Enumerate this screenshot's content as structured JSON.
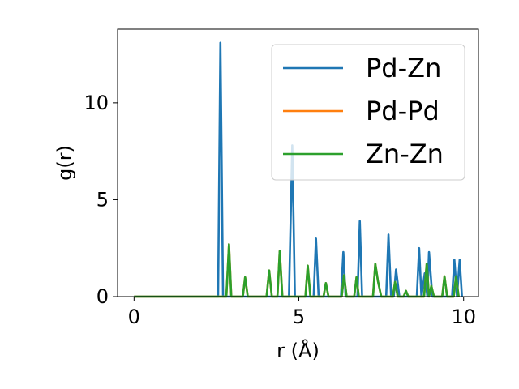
{
  "chart_data": {
    "type": "line",
    "xlabel": "r (Å)",
    "ylabel": "g(r)",
    "xlim": [
      -0.5,
      10.45
    ],
    "ylim": [
      0,
      13.8
    ],
    "xticks": [
      0,
      5,
      10
    ],
    "yticks": [
      0,
      5,
      10
    ],
    "grid": false,
    "legend_position": "top-right",
    "series": [
      {
        "name": "Pd-Zn",
        "color": "#1f77b4",
        "x": [
          0,
          2.5,
          2.55,
          2.62,
          2.7,
          2.75,
          4.62,
          4.7,
          4.8,
          4.88,
          4.95,
          5.38,
          5.45,
          5.52,
          5.6,
          6.2,
          6.28,
          6.35,
          6.42,
          6.7,
          6.78,
          6.85,
          6.92,
          7.58,
          7.65,
          7.72,
          7.8,
          7.88,
          7.95,
          8.05,
          8.12,
          8.58,
          8.65,
          8.72,
          8.82,
          8.9,
          8.95,
          9.05,
          9.15,
          9.65,
          9.72,
          9.8,
          9.88,
          9.95
        ],
        "y": [
          0,
          0,
          0,
          13.1,
          0,
          0,
          0,
          0,
          7.8,
          0,
          0,
          0,
          0,
          3.0,
          0,
          0,
          0,
          2.3,
          0,
          0,
          0,
          3.9,
          0,
          0,
          0,
          3.2,
          0,
          0,
          1.4,
          0,
          0,
          0,
          2.5,
          0,
          1.2,
          0,
          2.3,
          0,
          0,
          0,
          1.9,
          0,
          1.9,
          0
        ]
      },
      {
        "name": "Pd-Pd",
        "color": "#ff7f0e",
        "x": [
          0,
          2.8,
          2.88,
          2.95,
          3.3,
          3.37,
          3.45,
          4.02,
          4.1,
          4.18,
          4.35,
          4.42,
          4.5,
          5.2,
          5.27,
          5.35,
          5.75,
          5.82,
          5.9,
          6.3,
          6.37,
          6.45,
          6.68,
          6.75,
          6.82,
          7.25,
          7.32,
          7.4,
          7.5,
          7.85,
          7.92,
          8.0,
          8.18,
          8.25,
          8.32,
          8.8,
          8.88,
          8.95,
          9.02,
          9.1,
          9.35,
          9.42,
          9.5,
          9.7,
          9.77,
          9.85
        ],
        "y": [
          0,
          0,
          2.7,
          0,
          0,
          1.0,
          0,
          0,
          1.35,
          0,
          0,
          2.35,
          0,
          0,
          1.6,
          0,
          0,
          0.7,
          0,
          0,
          1.1,
          0,
          0,
          1.0,
          0,
          0,
          1.7,
          0.8,
          0,
          0,
          0.75,
          0,
          0,
          0.3,
          0,
          0,
          1.7,
          0,
          0.55,
          0,
          0,
          1.05,
          0,
          0,
          1.05,
          0
        ]
      },
      {
        "name": "Zn-Zn",
        "color": "#2ca02c",
        "x": [
          0,
          2.8,
          2.88,
          2.95,
          3.3,
          3.37,
          3.45,
          4.02,
          4.1,
          4.18,
          4.35,
          4.42,
          4.5,
          5.2,
          5.27,
          5.35,
          5.75,
          5.82,
          5.9,
          6.3,
          6.37,
          6.45,
          6.68,
          6.75,
          6.82,
          7.25,
          7.32,
          7.4,
          7.5,
          7.85,
          7.92,
          8.0,
          8.18,
          8.25,
          8.32,
          8.8,
          8.88,
          8.95,
          9.02,
          9.1,
          9.35,
          9.42,
          9.5,
          9.7,
          9.77,
          9.85
        ],
        "y": [
          0,
          0,
          2.7,
          0,
          0,
          1.0,
          0,
          0,
          1.35,
          0,
          0,
          2.35,
          0,
          0,
          1.6,
          0,
          0,
          0.7,
          0,
          0,
          1.1,
          0,
          0,
          1.0,
          0,
          0,
          1.7,
          0.8,
          0,
          0,
          0.75,
          0,
          0,
          0.3,
          0,
          0,
          1.7,
          0,
          0.55,
          0,
          0,
          1.05,
          0,
          0,
          1.05,
          0
        ]
      }
    ]
  }
}
